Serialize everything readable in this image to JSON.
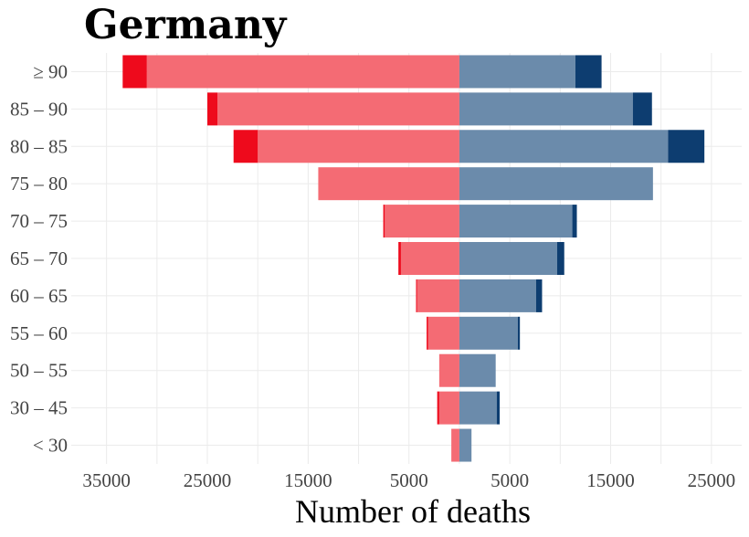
{
  "chart_data": {
    "type": "bar",
    "orientation": "horizontal-diverging",
    "title": "Germany",
    "xlabel": "Number of deaths",
    "ylabel": "",
    "categories": [
      "< 30",
      "30 – 45",
      "50 – 55",
      "55 – 60",
      "60 – 65",
      "65 – 70",
      "70 – 75",
      "75 – 80",
      "80 – 85",
      "85 – 90",
      "≥ 90"
    ],
    "x_tick_labels": [
      "35000",
      "25000",
      "15000",
      "5000",
      "5000",
      "15000",
      "25000"
    ],
    "x_ticks": [
      -35000,
      -25000,
      -15000,
      -5000,
      5000,
      15000,
      25000
    ],
    "xlim": [
      -38500,
      28000
    ],
    "grid": true,
    "legend": "none",
    "series": [
      {
        "side": "left",
        "segment": "base",
        "color": "#f46b74",
        "values": [
          -800,
          -2000,
          -2000,
          -3100,
          -4200,
          -5800,
          -7400,
          -14000,
          -20000,
          -24000,
          -31000
        ]
      },
      {
        "side": "left",
        "segment": "extra",
        "color": "#ee0a1c",
        "values": [
          0,
          -200,
          0,
          -150,
          -100,
          -250,
          -150,
          0,
          -2400,
          -1000,
          -2400
        ]
      },
      {
        "side": "right",
        "segment": "base",
        "color": "#6b8bab",
        "values": [
          1200,
          3700,
          3600,
          5800,
          7600,
          9700,
          11200,
          19200,
          20700,
          17200,
          11500
        ]
      },
      {
        "side": "right",
        "segment": "extra",
        "color": "#0d3d70",
        "values": [
          0,
          300,
          0,
          200,
          600,
          700,
          450,
          0,
          3600,
          1900,
          2600
        ]
      }
    ]
  }
}
